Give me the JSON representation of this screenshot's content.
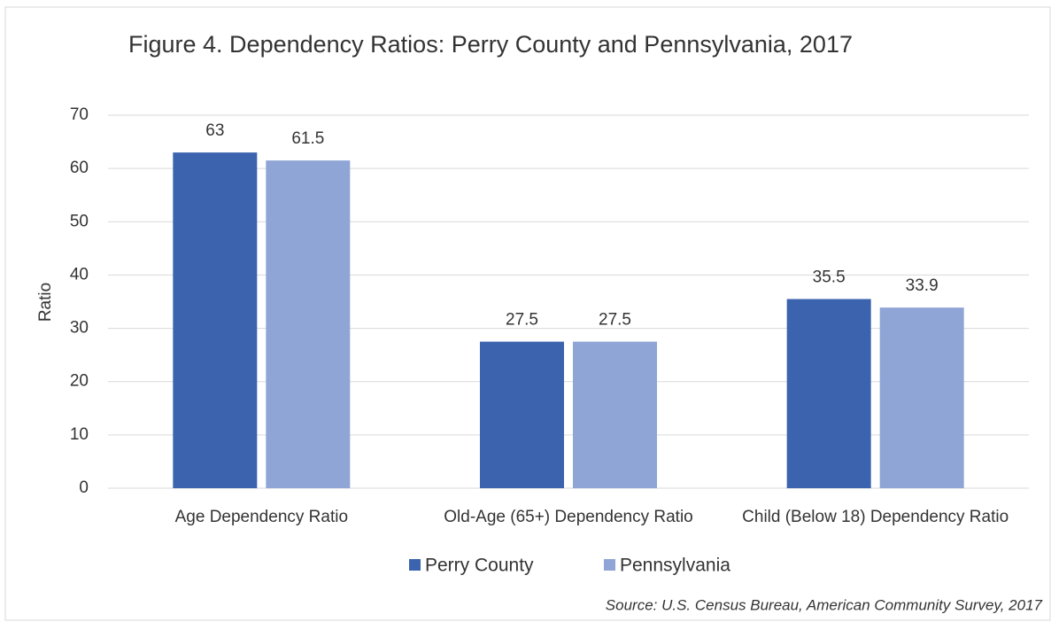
{
  "chart_data": {
    "type": "bar",
    "title": "Figure 4. Dependency Ratios: Perry County and Pennsylvania, 2017",
    "y_label": "Ratio",
    "source": "Source: U.S. Census Bureau, American Community Survey, 2017",
    "categories": [
      "Age Dependency Ratio",
      "Old-Age (65+) Dependency Ratio",
      "Child (Below 18) Dependency Ratio"
    ],
    "series": [
      {
        "name": "Perry County",
        "color": "#3c64ae",
        "values": [
          63,
          27.5,
          35.5
        ]
      },
      {
        "name": "Pennsylvania",
        "color": "#8fa5d6",
        "values": [
          61.5,
          27.5,
          33.9
        ]
      }
    ],
    "ylim": [
      0,
      70
    ],
    "yticks": [
      0,
      10,
      20,
      30,
      40,
      50,
      60,
      70
    ],
    "grid": true,
    "legend": "bottom"
  }
}
